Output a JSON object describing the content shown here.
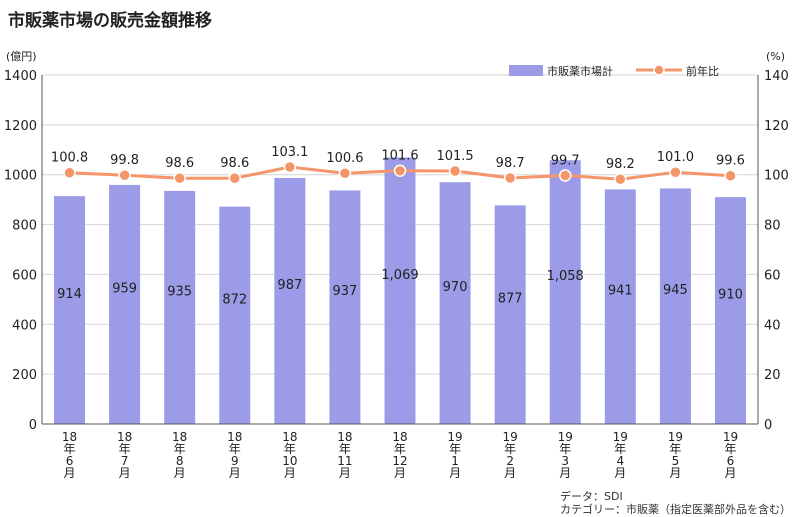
{
  "title": "市販薬市場の販売金額推移",
  "source_line1": "データ：SDI",
  "source_line2": "カテゴリー：市販薬（指定医薬部外品を含む）",
  "chart_data": {
    "type": "bar+line",
    "title": "市販薬市場の販売金額推移",
    "y_left_unit": "(億円)",
    "y_right_unit": "(%)",
    "y_left_range": [
      0,
      1400
    ],
    "y_right_range": [
      0,
      140
    ],
    "y_left_ticks": [
      "0",
      "200",
      "400",
      "600",
      "800",
      "1000",
      "1200",
      "1400"
    ],
    "y_right_ticks": [
      "0",
      "20",
      "40",
      "60",
      "80",
      "100",
      "120",
      "140"
    ],
    "grid": true,
    "legend_position": "top-right",
    "categories": [
      [
        "18",
        "年",
        "6",
        "月"
      ],
      [
        "18",
        "年",
        "7",
        "月"
      ],
      [
        "18",
        "年",
        "8",
        "月"
      ],
      [
        "18",
        "年",
        "9",
        "月"
      ],
      [
        "18",
        "年",
        "10",
        "月"
      ],
      [
        "18",
        "年",
        "11",
        "月"
      ],
      [
        "18",
        "年",
        "12",
        "月"
      ],
      [
        "19",
        "年",
        "1",
        "月"
      ],
      [
        "19",
        "年",
        "2",
        "月"
      ],
      [
        "19",
        "年",
        "3",
        "月"
      ],
      [
        "19",
        "年",
        "4",
        "月"
      ],
      [
        "19",
        "年",
        "5",
        "月"
      ],
      [
        "19",
        "年",
        "6",
        "月"
      ]
    ],
    "series": [
      {
        "name": "市販薬市場計",
        "type": "bar",
        "axis": "left",
        "color": "#9b9be8",
        "values": [
          914,
          959,
          935,
          872,
          987,
          937,
          1069,
          970,
          877,
          1058,
          941,
          945,
          910
        ],
        "labels": [
          "914",
          "959",
          "935",
          "872",
          "987",
          "937",
          "1,069",
          "970",
          "877",
          "1,058",
          "941",
          "945",
          "910"
        ]
      },
      {
        "name": "前年比",
        "type": "line",
        "axis": "right",
        "color": "#f4956a",
        "values": [
          100.8,
          99.8,
          98.6,
          98.6,
          103.1,
          100.6,
          101.6,
          101.5,
          98.7,
          99.7,
          98.2,
          101.0,
          99.6
        ],
        "labels": [
          "100.8",
          "99.8",
          "98.6",
          "98.6",
          "103.1",
          "100.6",
          "101.6",
          "101.5",
          "98.7",
          "99.7",
          "98.2",
          "101.0",
          "99.6"
        ]
      }
    ]
  }
}
